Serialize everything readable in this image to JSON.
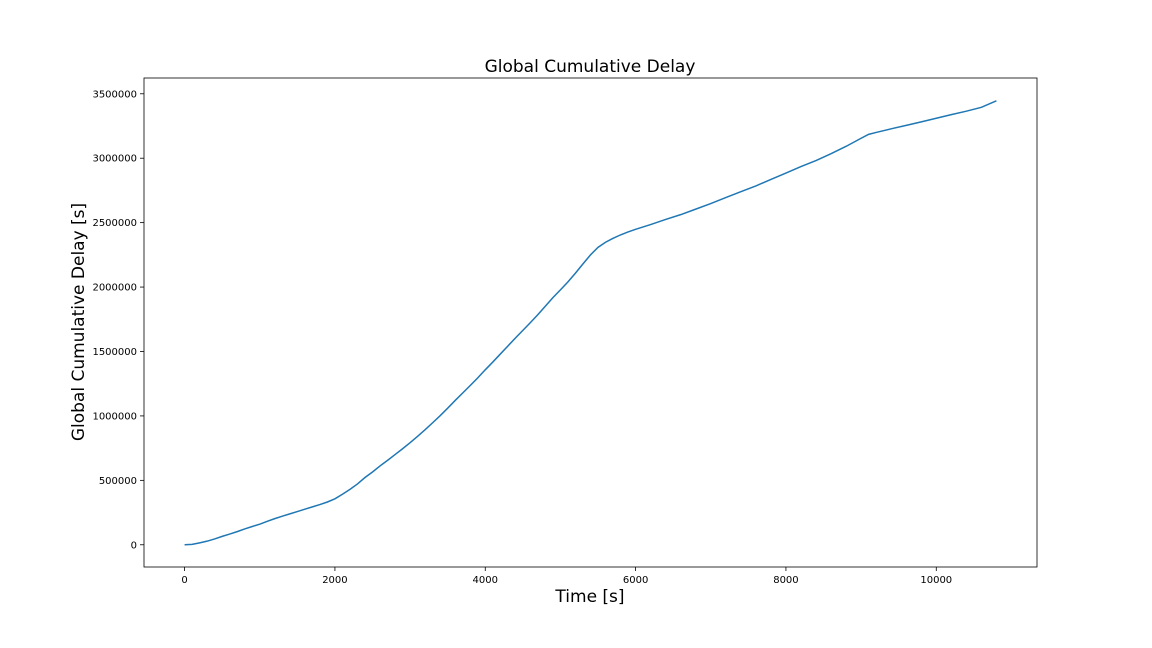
{
  "chart_data": {
    "type": "line",
    "title": "Global Cumulative Delay",
    "xlabel": "Time [s]",
    "ylabel": "Global Cumulative Delay [s]",
    "xlim": [
      -540,
      11340
    ],
    "ylim": [
      -172500,
      3622500
    ],
    "xticks": [
      0,
      2000,
      4000,
      6000,
      8000,
      10000
    ],
    "yticks": [
      0,
      500000,
      1000000,
      1500000,
      2000000,
      2500000,
      3000000,
      3500000
    ],
    "grid": false,
    "series": [
      {
        "color": "#1f77b4",
        "x": [
          0,
          100,
          200,
          300,
          400,
          500,
          600,
          700,
          800,
          900,
          1000,
          1100,
          1200,
          1300,
          1400,
          1500,
          1600,
          1700,
          1800,
          1900,
          2000,
          2100,
          2200,
          2300,
          2400,
          2500,
          2600,
          2700,
          2800,
          2900,
          3000,
          3100,
          3200,
          3300,
          3400,
          3500,
          3600,
          3700,
          3800,
          3900,
          4000,
          4100,
          4200,
          4300,
          4400,
          4500,
          4600,
          4700,
          4800,
          4900,
          5000,
          5100,
          5200,
          5300,
          5400,
          5500,
          5600,
          5700,
          5800,
          5900,
          6000,
          6200,
          6400,
          6600,
          6800,
          7000,
          7200,
          7400,
          7600,
          7800,
          8000,
          8200,
          8400,
          8600,
          8800,
          9000,
          9100,
          9200,
          9400,
          9600,
          9800,
          10000,
          10200,
          10400,
          10600,
          10800
        ],
        "y": [
          0,
          3000,
          15000,
          28000,
          45000,
          65000,
          83000,
          102000,
          123000,
          142000,
          160000,
          182000,
          203000,
          222000,
          240000,
          258000,
          276000,
          294000,
          312000,
          332000,
          357000,
          392000,
          430000,
          472000,
          522000,
          565000,
          612000,
          655000,
          700000,
          745000,
          792000,
          842000,
          893000,
          947000,
          1002000,
          1060000,
          1120000,
          1178000,
          1236000,
          1295000,
          1358000,
          1418000,
          1480000,
          1542000,
          1604000,
          1664000,
          1724000,
          1786000,
          1852000,
          1918000,
          1978000,
          2040000,
          2108000,
          2180000,
          2250000,
          2308000,
          2348000,
          2378000,
          2405000,
          2428000,
          2448000,
          2485000,
          2525000,
          2562000,
          2605000,
          2648000,
          2695000,
          2740000,
          2785000,
          2835000,
          2885000,
          2935000,
          2982000,
          3035000,
          3092000,
          3155000,
          3185000,
          3200000,
          3228000,
          3255000,
          3282000,
          3310000,
          3338000,
          3365000,
          3395000,
          3445000
        ]
      }
    ]
  }
}
